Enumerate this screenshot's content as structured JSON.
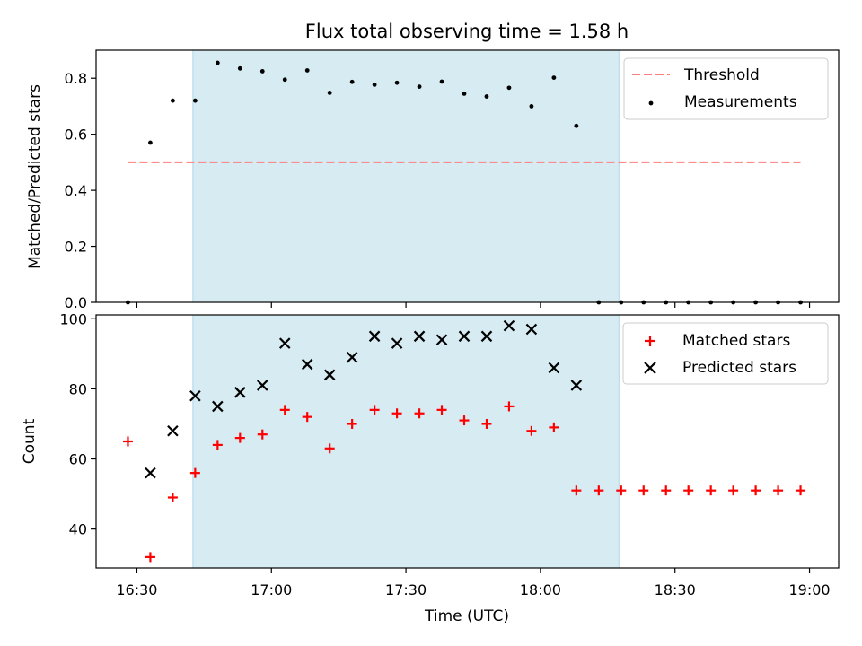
{
  "chart_data": {
    "type": "scatter",
    "title": "Flux total observing time = 1.58 h",
    "xlabel": "Time (UTC)",
    "x_tick_labels": [
      "16:30",
      "17:00",
      "17:30",
      "18:00",
      "18:30",
      "19:00"
    ],
    "x_tick_minutes": [
      990,
      1020,
      1050,
      1080,
      1110,
      1140
    ],
    "xlim": [
      980.9,
      1146.5
    ],
    "shaded_span": {
      "start": 1002.5,
      "end": 1097.5,
      "color": "#add8e6"
    },
    "x_minutes": [
      988,
      993,
      998,
      1003,
      1008,
      1013,
      1018,
      1023,
      1028,
      1033,
      1038,
      1043,
      1048,
      1053,
      1058,
      1063,
      1068,
      1073,
      1078,
      1083,
      1088,
      1093,
      1098,
      1103,
      1108,
      1113,
      1118,
      1123,
      1128,
      1133,
      1138
    ],
    "panels": [
      {
        "id": "ratio",
        "ylabel": "Matched/Predicted stars",
        "ylim": [
          0,
          0.9
        ],
        "y_ticks": [
          0.0,
          0.2,
          0.4,
          0.6,
          0.8
        ],
        "y_tick_labels": [
          "0.0",
          "0.2",
          "0.4",
          "0.6",
          "0.8"
        ],
        "legend_position": "top-right",
        "threshold": {
          "name": "Threshold",
          "value": 0.5,
          "x_start": 988,
          "x_end": 1138,
          "color": "#ff7f7f",
          "style": "dashed"
        },
        "series": [
          {
            "name": "Measurements",
            "marker": "dot",
            "color": "#000000",
            "values": [
              0.0,
              0.57,
              0.72,
              0.72,
              0.855,
              0.835,
              0.825,
              0.795,
              0.828,
              0.748,
              0.787,
              0.777,
              0.784,
              0.77,
              0.788,
              0.745,
              0.735,
              0.766,
              0.7,
              0.802,
              0.63,
              0.0,
              0.0,
              0.0,
              0.0,
              0.0,
              0.0,
              0.0,
              0.0,
              0.0,
              0.0
            ]
          }
        ]
      },
      {
        "id": "count",
        "ylabel": "Count",
        "ylim": [
          28.9,
          101.1
        ],
        "y_ticks": [
          40,
          60,
          80,
          100
        ],
        "y_tick_labels": [
          "40",
          "60",
          "80",
          "100"
        ],
        "legend_position": "top-right",
        "series": [
          {
            "name": "Matched stars",
            "marker": "plus",
            "color": "#ff0000",
            "values": [
              65,
              32,
              49,
              56,
              64,
              66,
              67,
              74,
              72,
              63,
              70,
              74,
              73,
              73,
              74,
              71,
              70,
              75,
              68,
              69,
              51,
              51,
              51,
              51,
              51,
              51,
              51,
              51,
              51,
              51,
              51
            ]
          },
          {
            "name": "Predicted stars",
            "marker": "x",
            "color": "#000000",
            "values": [
              null,
              56,
              68,
              78,
              75,
              79,
              81,
              93,
              87,
              84,
              89,
              95,
              93,
              95,
              94,
              95,
              95,
              98,
              97,
              86,
              81,
              null,
              null,
              null,
              null,
              null,
              null,
              null,
              null,
              null,
              null
            ]
          }
        ]
      }
    ]
  }
}
